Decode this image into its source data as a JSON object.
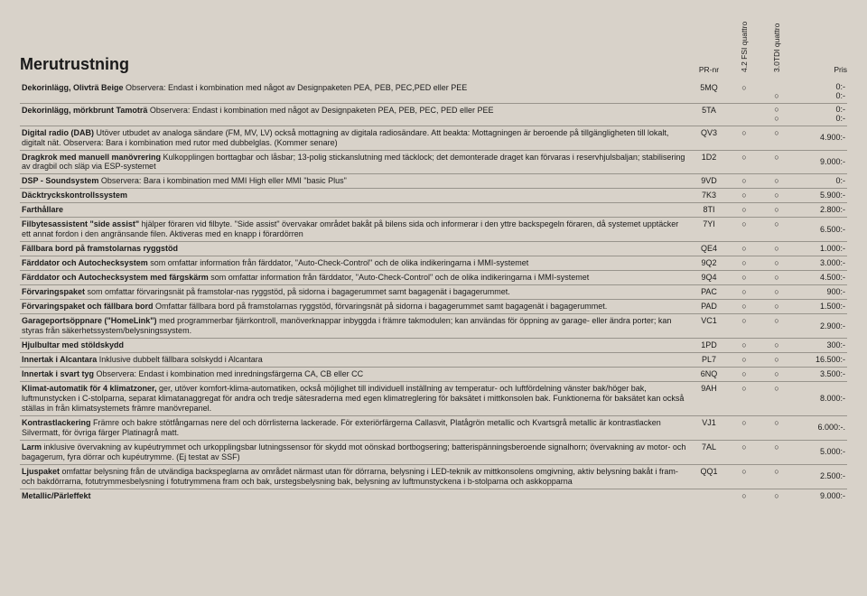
{
  "title": "Merutrustning",
  "columns": {
    "prnr": "PR-nr",
    "opt1": "4.2 FSI quattro",
    "opt2": "3.0TDI quattro",
    "price": "Pris"
  },
  "rows": [
    {
      "desc_b": "Dekorinlägg, Olivträ Beige",
      "desc_r": "\nObservera: Endast i kombination med något av Designpaketen PEA, PEB, PEC,PED eller PEE",
      "prnr": "5MQ",
      "opt1": "○",
      "opt2_stack": [
        "",
        "○"
      ],
      "price_stack": [
        "0:-",
        "0:-"
      ]
    },
    {
      "desc_b": "Dekorinlägg, mörkbrunt Tamoträ",
      "desc_r": "\nObservera: Endast i kombination med något av Designpaketen PEA, PEB, PEC, PED eller PEE",
      "prnr": "5TA",
      "opt1_stack": [
        "",
        ""
      ],
      "opt2_stack": [
        "○",
        "○"
      ],
      "price_stack": [
        "0:-",
        "0:-"
      ]
    },
    {
      "desc_b": "Digital radio (DAB) ",
      "desc_r": "Utöver utbudet av analoga sändare (FM, MV, LV) också mottagning av digitala radiosändare. Att beakta: Mottagningen är beroende på tillgängligheten till lokalt, digitalt nät. Observera: Bara i kombination med rutor med dubbelglas. (Kommer senare)",
      "prnr": "QV3",
      "opt1": "○",
      "opt2": "○",
      "price": "4.900:-"
    },
    {
      "desc_b": "Dragkrok med manuell manövrering ",
      "desc_r": "Kulkopplingen borttagbar och låsbar; 13-polig stickanslutning med täcklock; det demonterade draget kan förvaras i reservhjulsbaljan; stabilisering av dragbil och släp via ESP-systemet",
      "prnr": "1D2",
      "opt1": "○",
      "opt2": "○",
      "price": "9.000:-"
    },
    {
      "desc_b": "DSP - Soundsystem ",
      "desc_r": "Observera: Bara i kombination med MMI High eller MMI \"basic Plus\"",
      "prnr": "9VD",
      "opt1": "○",
      "opt2": "○",
      "price": "0:-"
    },
    {
      "desc_b": "Däcktryckskontrollssystem",
      "desc_r": "",
      "prnr": "7K3",
      "opt1": "○",
      "opt2": "○",
      "price": "5.900:-"
    },
    {
      "desc_b": "Farthållare",
      "desc_r": "",
      "prnr": "8TI",
      "opt1": "○",
      "opt2": "○",
      "price": "2.800:-"
    },
    {
      "desc_b": "Filbytesassistent \"side assist\" ",
      "desc_r": "hjälper föraren vid filbyte. \"Side assist\" övervakar området bakåt på bilens sida och informerar i den yttre backspegeln föraren, då systemet upptäcker ett annat fordon i den angränsande filen. Aktiveras med en knapp i förardörren",
      "prnr": "7YI",
      "opt1": "○",
      "opt2": "○",
      "price": "6.500:-"
    },
    {
      "desc_b": "Fällbara bord på framstolarnas ryggstöd",
      "desc_r": "",
      "prnr": "QE4",
      "opt1": "○",
      "opt2": "○",
      "price": "1.000:-"
    },
    {
      "desc_b": "Färddator och Autochecksystem ",
      "desc_r": "som omfattar information från färddator, \"Auto-Check-Control\" och de olika indikeringarna i MMI-systemet",
      "prnr": "9Q2",
      "opt1": "○",
      "opt2": "○",
      "price": "3.000:-"
    },
    {
      "desc_b": "Färddator och Autochecksystem med färgskärm ",
      "desc_r": "som omfattar information från färddator, \"Auto-Check-Control\" och de olika indikeringarna i MMI-systemet",
      "prnr": "9Q4",
      "opt1": "○",
      "opt2": "○",
      "price": "4.500:-"
    },
    {
      "desc_b": "Förvaringspaket ",
      "desc_r": "som omfattar förvaringsnät på framstolar-nas ryggstöd, på sidorna i bagagerummet samt bagagenät i bagagerummet.",
      "prnr": "PAC",
      "opt1": "○",
      "opt2": "○",
      "price": "900:-"
    },
    {
      "desc_b": "Förvaringspaket och fällbara bord ",
      "desc_r": "Omfattar fällbara bord på framstolarnas ryggstöd, förvaringsnät på sidorna i bagagerummet samt bagagenät i bagagerummet.",
      "prnr": "PAD",
      "opt1": "○",
      "opt2": "○",
      "price": "1.500:-"
    },
    {
      "desc_b": "Garageportsöppnare (\"HomeLink\") ",
      "desc_r": "med programmerbar fjärrkontroll, manöverknappar inbyggda i främre takmodulen; kan användas för öppning av garage- eller ändra porter; kan styras från säkerhetssystem/belysningssystem.",
      "prnr": "VC1",
      "opt1": "○",
      "opt2": "○",
      "price": "2.900:-"
    },
    {
      "desc_b": "Hjulbultar med stöldskydd",
      "desc_r": "",
      "prnr": "1PD",
      "opt1": "○",
      "opt2": "○",
      "price": "300:-"
    },
    {
      "desc_b": "Innertak i Alcantara ",
      "desc_r": "Inklusive dubbelt fällbara solskydd i Alcantara",
      "prnr": "PL7",
      "opt1": "○",
      "opt2": "○",
      "price": "16.500:-"
    },
    {
      "desc_b": "Innertak i svart tyg ",
      "desc_r": "Observera: Endast i kombination med inredningsfärgerna CA, CB eller CC",
      "prnr": "6NQ",
      "opt1": "○",
      "opt2": "○",
      "price": "3.500:-"
    },
    {
      "desc_b": "Klimat-automatik för 4 klimatzoner, ",
      "desc_r": "ger, utöver komfort-klima-automatiken, också möjlighet till individuell inställning av temperatur- och luftfördelning vänster bak/höger bak, luftmunstycken i C-stolparna, separat klimatanaggregat för andra och tredje sätesraderna med egen klimatreglering för baksätet i mittkonsolen bak. Funktionerna för baksätet kan också ställas in från klimatsystemets främre manövrepanel.",
      "prnr": "9AH",
      "opt1": "○",
      "opt2": "○",
      "price": "8.000:-"
    },
    {
      "desc_b": "Kontrastlackering ",
      "desc_r": "Främre och bakre stötfångarnas nere del och dörrlisterna lackerade. För exteriörfärgerna Callasvit, Platågrön metallic och Kvartsgrå metallic är kontrastlacken Silvermatt, för övriga färger Platinagrå matt.",
      "prnr": "VJ1",
      "opt1": "○",
      "opt2": "○",
      "price": "6.000:-."
    },
    {
      "desc_b": "Larm ",
      "desc_r": "inklusive övervakning av kupéutrymmet och urkopplingsbar lutningssensor för skydd mot oönskad bortbogsering; batterispänningsberoende signalhorn; övervakning av motor- och bagagerum, fyra dörrar och kupéutrymme. (Ej testat av SSF)",
      "prnr": "7AL",
      "opt1": "○",
      "opt2": "○",
      "price": "5.000:-"
    },
    {
      "desc_b": "Ljuspaket ",
      "desc_r": "omfattar belysning från de utvändiga backspeglarna av området närmast utan för dörrarna, belysning i LED-teknik av mittkonsolens omgivning, aktiv belysning bakåt i fram- och bakdörrarna, fotutrymmesbelysning i fotutrymmena fram och bak, urstegsbelysning bak, belysning av luftmunstyckena i b-stolparna och askkopparna",
      "prnr": "QQ1",
      "opt1": "○",
      "opt2": "○",
      "price": "2.500:-"
    },
    {
      "desc_b": "Metallic/Pärleffekt",
      "desc_r": "",
      "prnr": "",
      "opt1": "○",
      "opt2": "○",
      "price": "9.000:-",
      "last": true
    }
  ]
}
